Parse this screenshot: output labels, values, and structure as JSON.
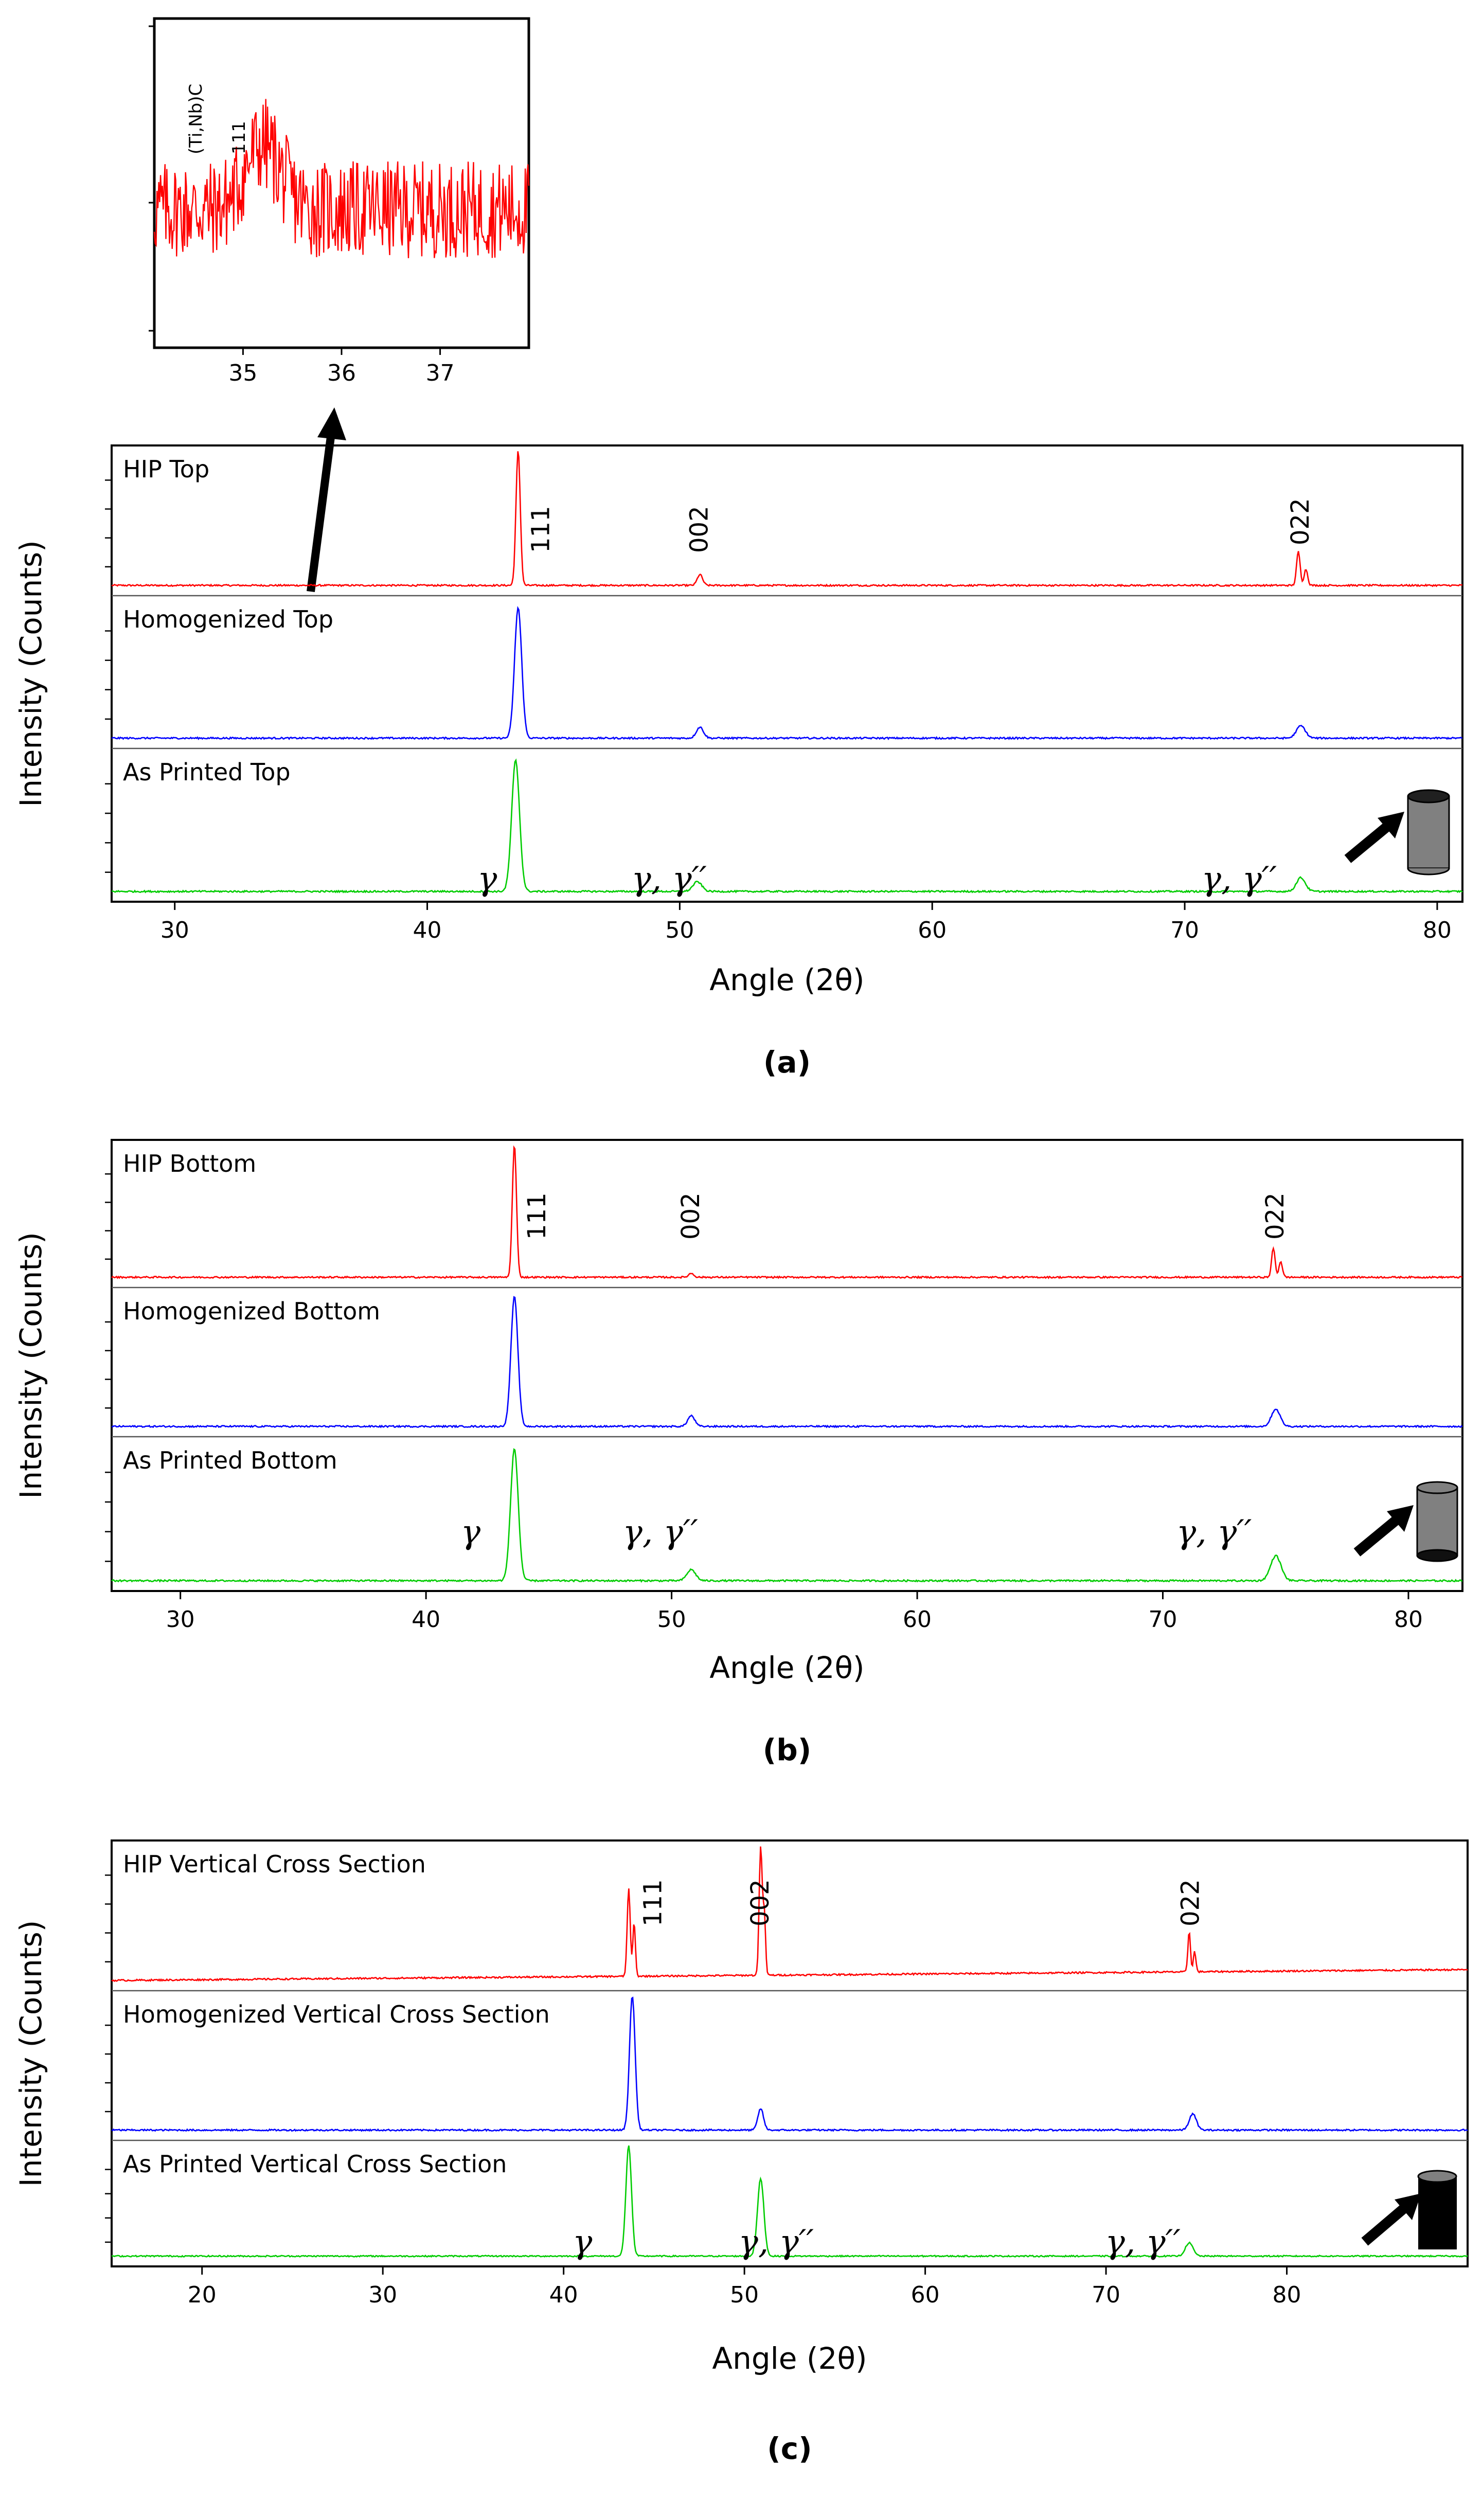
{
  "chart_data": [
    {
      "type": "line",
      "panel": "(a)",
      "xlabel": "Angle (2θ)",
      "ylabel": "Intensity (Counts)",
      "xlim": [
        27.5,
        81
      ],
      "xticks": [
        30,
        40,
        50,
        60,
        70,
        80
      ],
      "series": [
        {
          "name": "HIP Top",
          "color": "#ff0000",
          "peaks": [
            {
              "x": 43.6,
              "h": 1.0,
              "w": 0.12
            },
            {
              "x": 50.8,
              "h": 0.08,
              "w": 0.15
            },
            {
              "x": 74.5,
              "h": 0.25,
              "w": 0.1
            },
            {
              "x": 74.8,
              "h": 0.12,
              "w": 0.1
            }
          ]
        },
        {
          "name": "Homogenized Top",
          "color": "#0000ff",
          "peaks": [
            {
              "x": 43.6,
              "h": 0.95,
              "w": 0.2
            },
            {
              "x": 50.8,
              "h": 0.08,
              "w": 0.2
            },
            {
              "x": 74.6,
              "h": 0.09,
              "w": 0.25
            }
          ]
        },
        {
          "name": "As Printed Top",
          "color": "#00cc00",
          "peaks": [
            {
              "x": 43.5,
              "h": 0.95,
              "w": 0.22
            },
            {
              "x": 50.7,
              "h": 0.07,
              "w": 0.25
            },
            {
              "x": 74.6,
              "h": 0.1,
              "w": 0.25
            }
          ]
        }
      ],
      "peak_labels": [
        {
          "text": "111",
          "x": 43.6
        },
        {
          "text": "002",
          "x": 50.8
        },
        {
          "text": "022",
          "x": 74.6
        }
      ],
      "phase_labels": [
        {
          "text": "γ",
          "x": 43.6
        },
        {
          "text": "γ, γ′′",
          "x": 50.8
        },
        {
          "text": "γ, γ′′",
          "x": 74.6
        }
      ],
      "inset": {
        "xlim": [
          34.1,
          37.9
        ],
        "xticks": [
          35,
          36,
          37
        ],
        "peak_label": "111",
        "phase_label": "(Ti,Nb)C",
        "peak_x": 35.2,
        "color": "#ff0000"
      }
    },
    {
      "type": "line",
      "panel": "(b)",
      "xlabel": "Angle (2θ)",
      "ylabel": "Intensity (Counts)",
      "xlim": [
        27.2,
        82.2
      ],
      "xticks": [
        30,
        40,
        50,
        60,
        70,
        80
      ],
      "series": [
        {
          "name": "HIP Bottom",
          "color": "#ff0000",
          "peaks": [
            {
              "x": 43.6,
              "h": 1.0,
              "w": 0.12
            },
            {
              "x": 50.8,
              "h": 0.03,
              "w": 0.15
            },
            {
              "x": 74.5,
              "h": 0.22,
              "w": 0.1
            },
            {
              "x": 74.8,
              "h": 0.12,
              "w": 0.1
            }
          ]
        },
        {
          "name": "Homogenized Bottom",
          "color": "#0000ff",
          "peaks": [
            {
              "x": 43.6,
              "h": 0.97,
              "w": 0.2
            },
            {
              "x": 50.8,
              "h": 0.08,
              "w": 0.2
            },
            {
              "x": 74.6,
              "h": 0.13,
              "w": 0.25
            }
          ]
        },
        {
          "name": "As Printed Bottom",
          "color": "#00cc00",
          "peaks": [
            {
              "x": 43.6,
              "h": 0.95,
              "w": 0.22
            },
            {
              "x": 50.8,
              "h": 0.08,
              "w": 0.25
            },
            {
              "x": 74.6,
              "h": 0.18,
              "w": 0.3
            }
          ]
        }
      ],
      "peak_labels": [
        {
          "text": "111",
          "x": 43.6
        },
        {
          "text": "002",
          "x": 50.8
        },
        {
          "text": "022",
          "x": 74.6
        }
      ],
      "phase_labels": [
        {
          "text": "γ",
          "x": 43.6
        },
        {
          "text": "γ, γ′′",
          "x": 50.8
        },
        {
          "text": "γ, γ′′",
          "x": 74.6
        }
      ]
    },
    {
      "type": "line",
      "panel": "(c)",
      "xlabel": "Angle (2θ)",
      "ylabel": "Intensity (Counts)",
      "xlim": [
        15,
        90
      ],
      "xticks": [
        20,
        30,
        40,
        50,
        60,
        70,
        80
      ],
      "series": [
        {
          "name": "HIP Vertical Cross Section",
          "color": "#ff0000",
          "peaks": [
            {
              "x": 43.6,
              "h": 0.65,
              "w": 0.12
            },
            {
              "x": 43.9,
              "h": 0.4,
              "w": 0.1
            },
            {
              "x": 50.9,
              "h": 0.95,
              "w": 0.12
            },
            {
              "x": 51.1,
              "h": 0.45,
              "w": 0.1
            },
            {
              "x": 74.6,
              "h": 0.3,
              "w": 0.1
            },
            {
              "x": 74.9,
              "h": 0.15,
              "w": 0.1
            }
          ],
          "slope": 0.08
        },
        {
          "name": "Homogenized Vertical Cross Section",
          "color": "#0000ff",
          "peaks": [
            {
              "x": 43.8,
              "h": 1.0,
              "w": 0.22
            },
            {
              "x": 50.9,
              "h": 0.16,
              "w": 0.22
            },
            {
              "x": 74.8,
              "h": 0.12,
              "w": 0.28
            }
          ]
        },
        {
          "name": "As Printed Vertical Cross Section",
          "color": "#00cc00",
          "peaks": [
            {
              "x": 43.6,
              "h": 1.0,
              "w": 0.22
            },
            {
              "x": 50.9,
              "h": 0.7,
              "w": 0.25
            },
            {
              "x": 74.6,
              "h": 0.12,
              "w": 0.3
            }
          ]
        }
      ],
      "peak_labels": [
        {
          "text": "111",
          "x": 43.7
        },
        {
          "text": "002",
          "x": 50.9
        },
        {
          "text": "022",
          "x": 74.7
        }
      ],
      "phase_labels": [
        {
          "text": "γ",
          "x": 43.6
        },
        {
          "text": "γ, γ′′",
          "x": 50.9
        },
        {
          "text": "γ, γ′′",
          "x": 74.6
        }
      ]
    }
  ]
}
